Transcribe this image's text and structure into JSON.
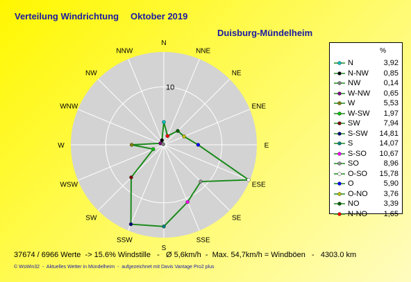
{
  "header": {
    "title": "Verteilung Windrichtung",
    "period": "Oktober 2019",
    "station": "Duisburg-Mündelheim"
  },
  "legend": {
    "unit": "%"
  },
  "chart_data": {
    "type": "radar",
    "directions": [
      "N",
      "NNE",
      "NE",
      "ENE",
      "E",
      "ESE",
      "SE",
      "SSE",
      "S",
      "SSW",
      "SW",
      "WSW",
      "W",
      "WNW",
      "NW",
      "NNW"
    ],
    "series": [
      {
        "name": "N",
        "values": [
          3.92
        ],
        "color": "#00c0c0"
      },
      {
        "name": "N-NW",
        "values": [
          0.85
        ],
        "color": "#000000"
      },
      {
        "name": "NW",
        "values": [
          0.14
        ],
        "color": "#808080"
      },
      {
        "name": "W-NW",
        "values": [
          0.65
        ],
        "color": "#800080"
      },
      {
        "name": "W",
        "values": [
          5.53
        ],
        "color": "#808000"
      },
      {
        "name": "W-SW",
        "values": [
          1.97
        ],
        "color": "#00c000"
      },
      {
        "name": "SW",
        "values": [
          7.94
        ],
        "color": "#800000"
      },
      {
        "name": "S-SW",
        "values": [
          14.81
        ],
        "color": "#000080"
      },
      {
        "name": "S",
        "values": [
          14.07
        ],
        "color": "#008080"
      },
      {
        "name": "S-SO",
        "values": [
          10.67
        ],
        "color": "#ff00ff"
      },
      {
        "name": "SO",
        "values": [
          8.96
        ],
        "color": "#909090"
      },
      {
        "name": "O-SO",
        "values": [
          15.78
        ],
        "color": "#ffffff"
      },
      {
        "name": "O",
        "values": [
          5.9
        ],
        "color": "#0000ff"
      },
      {
        "name": "O-NO",
        "values": [
          3.76
        ],
        "color": "#c0c000"
      },
      {
        "name": "NO",
        "values": [
          3.39
        ],
        "color": "#006000"
      },
      {
        "name": "N-NO",
        "values": [
          1.65
        ],
        "color": "#ff0000"
      }
    ],
    "values_by_direction": [
      3.92,
      1.65,
      3.39,
      3.76,
      5.9,
      15.78,
      8.96,
      10.67,
      14.07,
      14.81,
      7.94,
      1.97,
      5.53,
      0.65,
      0.14,
      0.85
    ],
    "radial_axis": {
      "max": 16,
      "ring_label": "10"
    },
    "line_color": "#1a8a1a"
  },
  "footer": {
    "stats": "37674 / 6966 Werte  -> 15.6% Windstille   -   Ø 5,6km/h  -  Max. 54,7km/h = Windböen   -   4303.0 km",
    "credit": "© WsWin32  -  Aktuelles Wetter in Mündelheim  -  aufgezeichnet mit Davis Vantage Pro2 plus"
  }
}
